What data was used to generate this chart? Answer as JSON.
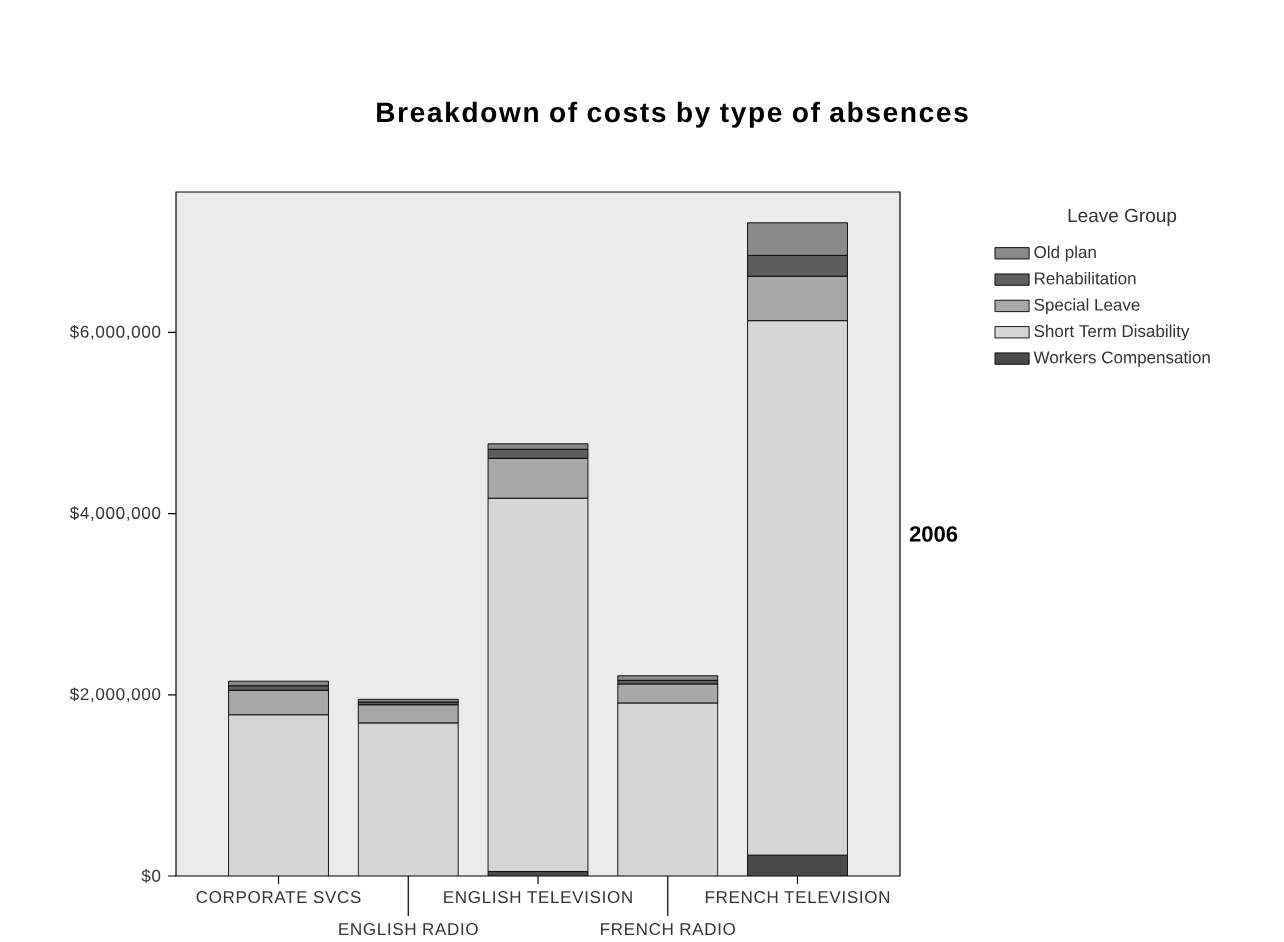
{
  "chart_data": {
    "type": "bar",
    "stacked": true,
    "title": "Breakdown of costs by type of absences",
    "legend_title": "Leave Group",
    "legend": "right",
    "annotations": [
      "2006"
    ],
    "categories": [
      "CORPORATE SVCS",
      "ENGLISH RADIO",
      "ENGLISH TELEVISION",
      "FRENCH RADIO",
      "FRENCH TELEVISION"
    ],
    "series": [
      {
        "name": "Workers Compensation",
        "color": "#4a4a4a",
        "values": [
          null,
          null,
          50000,
          null,
          230000
        ]
      },
      {
        "name": "Short Term Disability",
        "color": "#d6d6d6",
        "values": [
          1780000,
          1690000,
          4120000,
          1910000,
          5900000
        ]
      },
      {
        "name": "Special Leave",
        "color": "#a8a8a8",
        "values": [
          270000,
          200000,
          440000,
          210000,
          490000
        ]
      },
      {
        "name": "Rehabilitation",
        "color": "#5e5e5e",
        "values": [
          50000,
          30000,
          100000,
          40000,
          230000
        ]
      },
      {
        "name": "Old plan",
        "color": "#8a8a8a",
        "values": [
          50000,
          30000,
          60000,
          50000,
          360000
        ]
      }
    ],
    "ylim": [
      0,
      7550000
    ],
    "yticks": [
      {
        "value": 0,
        "label": "$0"
      },
      {
        "value": 2000000,
        "label": "$2,000,000"
      },
      {
        "value": 4000000,
        "label": "$4,000,000"
      },
      {
        "value": 6000000,
        "label": "$6,000,000"
      }
    ]
  }
}
